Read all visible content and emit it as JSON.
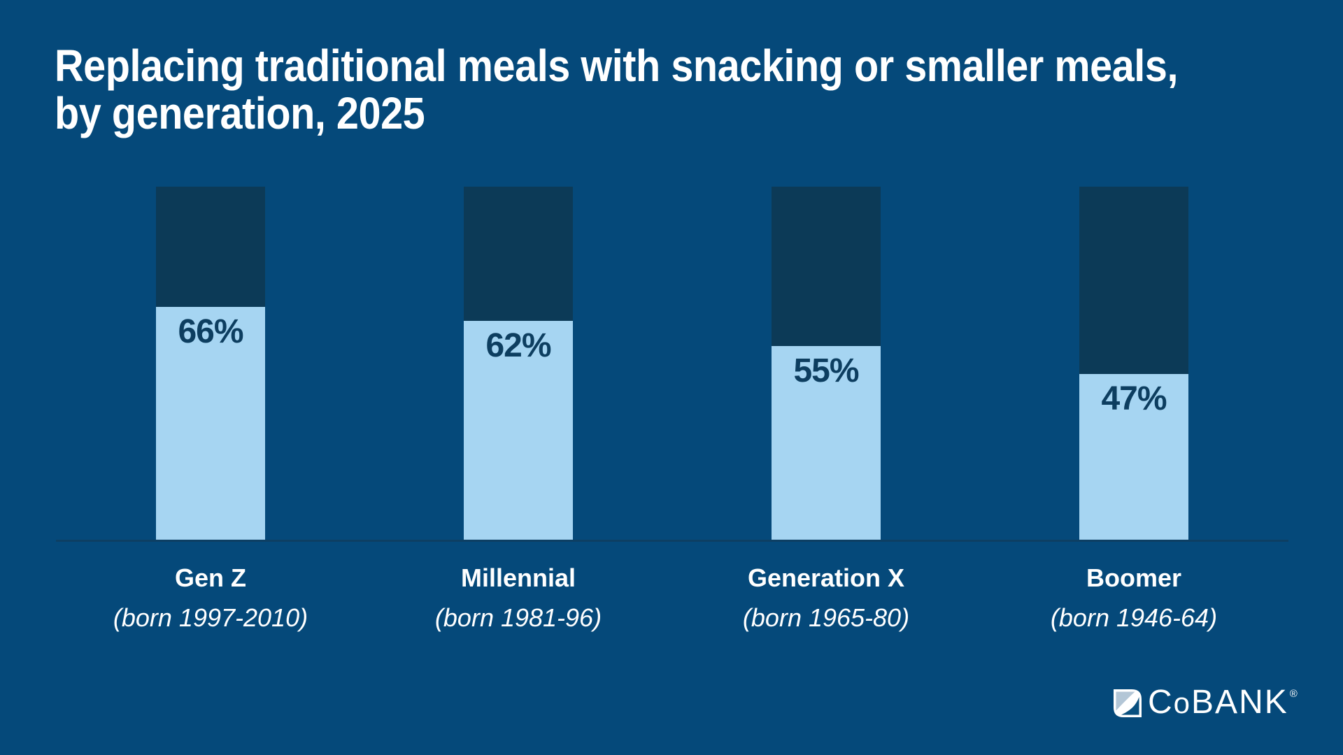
{
  "header": {
    "title_line1": "Replacing traditional meals with snacking or smaller meals,",
    "title_line2": "by generation, 2025"
  },
  "chart_data": {
    "type": "bar",
    "title": "Replacing traditional meals with snacking or smaller meals, by generation, 2025",
    "categories": [
      "Gen Z",
      "Millennial",
      "Generation X",
      "Boomer"
    ],
    "category_subtitles": [
      "(born 1997-2010)",
      "(born 1981-96)",
      "(born 1965-80)",
      "(born 1946-64)"
    ],
    "values": [
      66,
      62,
      55,
      47
    ],
    "value_labels": [
      "66%",
      "62%",
      "55%",
      "47%"
    ],
    "unit": "percent",
    "ylim": [
      0,
      100
    ],
    "bar_full_height_represents": 100,
    "legend": "none",
    "grid": "off",
    "colors": {
      "background": "#05497A",
      "bar_remainder": "#0C3A57",
      "bar_value": "#A6D5F2",
      "value_label": "#0D3E60",
      "category_label": "#FFFFFF",
      "axis_line": "#0D3F63"
    }
  },
  "branding": {
    "logo": {
      "c": "C",
      "o": "o",
      "bank": "BANK",
      "registered": "®"
    },
    "logo_icon": "cobank-leaf-mark",
    "logo_icon_colors": {
      "swoosh_bg": "#FFFFFF",
      "triangle": "#B3C6D6",
      "lower": "#09507F"
    }
  }
}
